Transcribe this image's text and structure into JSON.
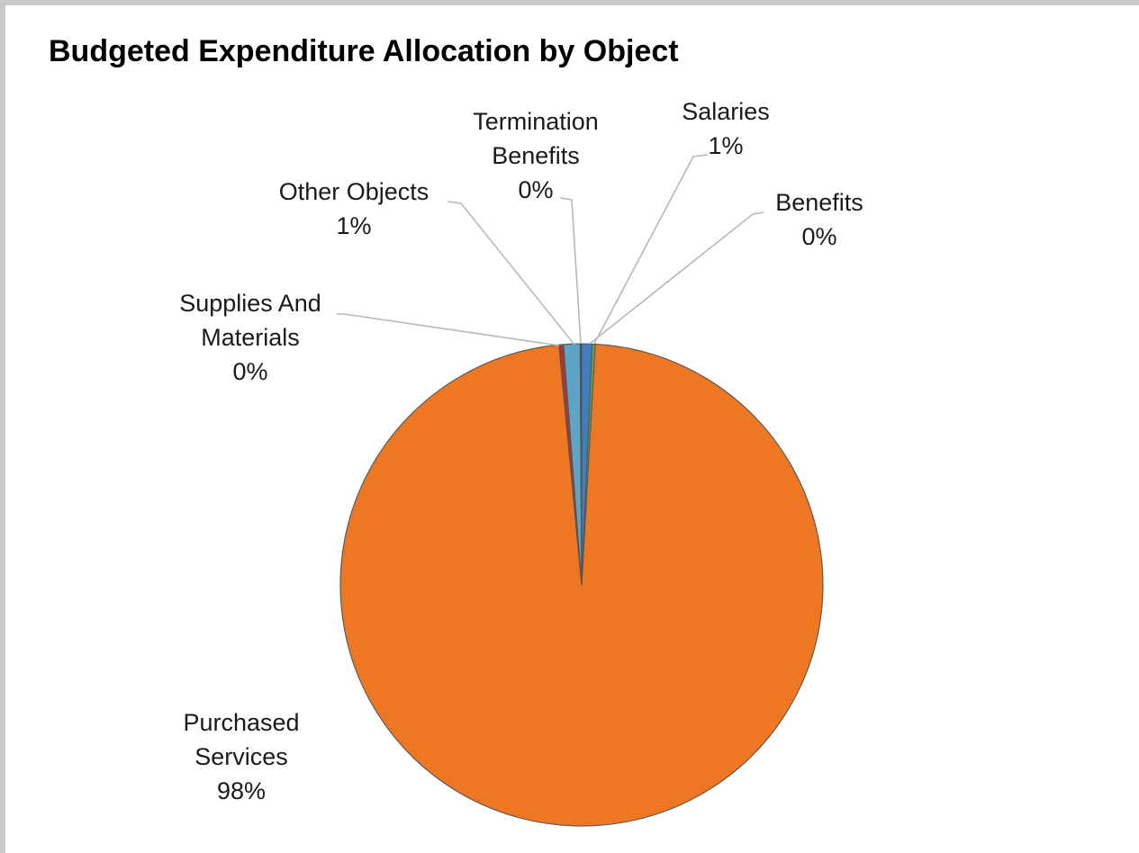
{
  "chart_data": {
    "type": "pie",
    "title": "Budgeted Expenditure Allocation by Object",
    "categories": [
      "Salaries",
      "Benefits",
      "Purchased Services",
      "Supplies And Materials",
      "Other Objects",
      "Termination Benefits"
    ],
    "values": [
      0.7,
      0.2,
      97.6,
      0.3,
      1.1,
      0.1
    ],
    "data_labels": [
      "Salaries 1%",
      "Benefits 0%",
      "Purchased Services 98%",
      "Supplies And Materials 0%",
      "Other Objects 1%",
      "Termination Benefits 0%"
    ],
    "colors": [
      "#3f7fbf",
      "#63a84a",
      "#ee7724",
      "#a43a33",
      "#5fa3c6",
      "#2e4f8c"
    ],
    "legend": "none",
    "labels": [
      {
        "lines": [
          "Salaries",
          "1%"
        ]
      },
      {
        "lines": [
          "Benefits",
          "0%"
        ]
      },
      {
        "lines": [
          "Purchased",
          "Services",
          "98%"
        ]
      },
      {
        "lines": [
          "Supplies And",
          "Materials",
          "0%"
        ]
      },
      {
        "lines": [
          "Other Objects",
          "1%"
        ]
      },
      {
        "lines": [
          "Termination",
          "Benefits",
          "0%"
        ]
      }
    ]
  }
}
